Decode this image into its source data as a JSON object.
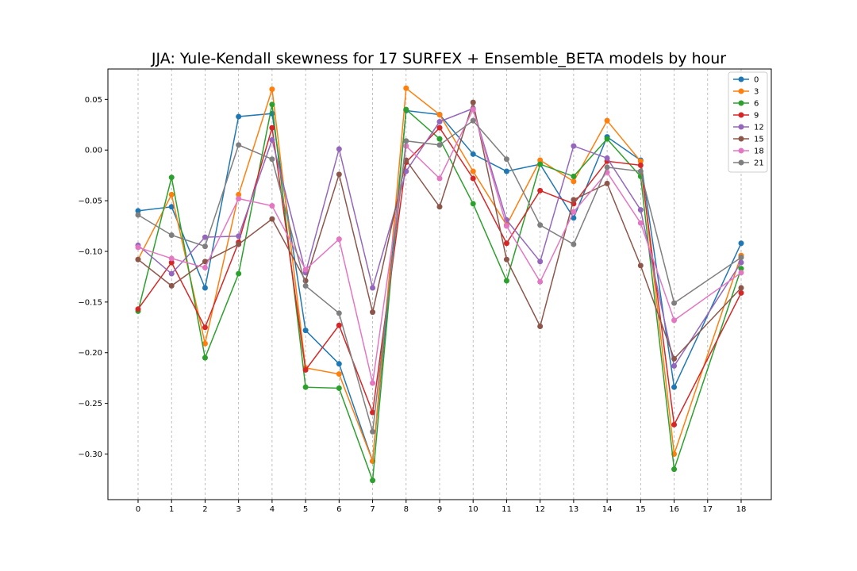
{
  "chart_data": {
    "type": "line",
    "title": "JJA: Yule-Kendall skewness for 17 SURFEX + Ensemble_BETA models by hour",
    "xlabel": "",
    "ylabel": "",
    "x": [
      0,
      1,
      2,
      3,
      4,
      5,
      6,
      7,
      8,
      9,
      10,
      11,
      12,
      13,
      14,
      15,
      16,
      17,
      18
    ],
    "x_tick_labels": [
      "0",
      "1",
      "2",
      "3",
      "4",
      "5",
      "6",
      "7",
      "8",
      "9",
      "10",
      "11",
      "12",
      "13",
      "14",
      "15",
      "16",
      "17",
      "18"
    ],
    "xlim": [
      -0.9,
      18.9
    ],
    "ylim": [
      -0.345,
      0.08
    ],
    "y_ticks": [
      0.05,
      0.0,
      -0.05,
      -0.1,
      -0.15,
      -0.2,
      -0.25,
      -0.3
    ],
    "y_tick_labels": [
      "0.05",
      "0.00",
      "−0.05",
      "−0.10",
      "−0.15",
      "−0.20",
      "−0.25",
      "−0.30"
    ],
    "grid": "vertical dashed",
    "legend_position": "top-right",
    "series": [
      {
        "name": "0",
        "color": "#1f77b4",
        "x": [
          0,
          1,
          2,
          3,
          4,
          5,
          6,
          7,
          8,
          9,
          10,
          11,
          12,
          13,
          14,
          15,
          16,
          18
        ],
        "values": [
          -0.06,
          -0.056,
          -0.136,
          0.033,
          0.036,
          -0.178,
          -0.211,
          -0.307,
          0.039,
          0.035,
          -0.004,
          -0.021,
          -0.014,
          -0.067,
          0.013,
          -0.01,
          -0.234,
          -0.092
        ]
      },
      {
        "name": "3",
        "color": "#ff7f0e",
        "x": [
          0,
          1,
          2,
          3,
          4,
          5,
          6,
          7,
          8,
          9,
          10,
          11,
          12,
          13,
          14,
          15,
          16,
          18
        ],
        "values": [
          -0.108,
          -0.044,
          -0.191,
          -0.044,
          0.06,
          -0.215,
          -0.221,
          -0.307,
          0.061,
          0.035,
          -0.021,
          -0.074,
          -0.01,
          -0.031,
          0.029,
          -0.011,
          -0.3,
          -0.104
        ]
      },
      {
        "name": "6",
        "color": "#2ca02c",
        "x": [
          0,
          1,
          2,
          3,
          4,
          5,
          6,
          7,
          8,
          9,
          10,
          11,
          12,
          13,
          14,
          15,
          16,
          18
        ],
        "values": [
          -0.159,
          -0.027,
          -0.205,
          -0.122,
          0.045,
          -0.234,
          -0.235,
          -0.326,
          0.04,
          0.011,
          -0.053,
          -0.129,
          -0.014,
          -0.026,
          0.011,
          -0.026,
          -0.315,
          -0.117
        ]
      },
      {
        "name": "9",
        "color": "#d62728",
        "x": [
          0,
          1,
          2,
          3,
          4,
          5,
          6,
          7,
          8,
          9,
          10,
          11,
          12,
          13,
          14,
          15,
          16,
          18
        ],
        "values": [
          -0.157,
          -0.111,
          -0.175,
          -0.091,
          0.022,
          -0.217,
          -0.173,
          -0.259,
          -0.012,
          0.022,
          -0.028,
          -0.092,
          -0.04,
          -0.053,
          -0.011,
          -0.015,
          -0.271,
          -0.141
        ]
      },
      {
        "name": "12",
        "color": "#9467bd",
        "x": [
          0,
          1,
          2,
          3,
          4,
          5,
          6,
          7,
          8,
          9,
          10,
          11,
          12,
          13,
          14,
          15,
          16,
          18
        ],
        "values": [
          -0.094,
          -0.122,
          -0.086,
          -0.085,
          0.01,
          -0.121,
          0.001,
          -0.136,
          -0.021,
          0.028,
          0.041,
          -0.069,
          -0.11,
          0.004,
          -0.008,
          -0.059,
          -0.213,
          -0.111
        ]
      },
      {
        "name": "15",
        "color": "#8c564b",
        "x": [
          0,
          1,
          2,
          3,
          4,
          5,
          6,
          7,
          8,
          9,
          10,
          11,
          12,
          13,
          14,
          15,
          16,
          18
        ],
        "values": [
          -0.108,
          -0.134,
          -0.11,
          -0.093,
          -0.068,
          -0.129,
          -0.024,
          -0.16,
          -0.01,
          -0.056,
          0.047,
          -0.108,
          -0.174,
          -0.049,
          -0.033,
          -0.114,
          -0.206,
          -0.136
        ]
      },
      {
        "name": "18",
        "color": "#e377c2",
        "x": [
          0,
          1,
          2,
          3,
          4,
          5,
          6,
          7,
          8,
          9,
          10,
          11,
          12,
          13,
          14,
          15,
          16,
          18
        ],
        "values": [
          -0.096,
          -0.107,
          -0.116,
          -0.048,
          -0.055,
          -0.118,
          -0.088,
          -0.23,
          0.004,
          -0.028,
          0.04,
          -0.075,
          -0.13,
          -0.061,
          -0.022,
          -0.072,
          -0.168,
          -0.121
        ]
      },
      {
        "name": "21",
        "color": "#7f7f7f",
        "x": [
          0,
          1,
          2,
          3,
          4,
          5,
          6,
          7,
          8,
          9,
          10,
          11,
          12,
          13,
          14,
          15,
          16,
          18
        ],
        "values": [
          -0.064,
          -0.084,
          -0.095,
          0.005,
          -0.009,
          -0.134,
          -0.161,
          -0.278,
          0.009,
          0.005,
          0.029,
          -0.009,
          -0.074,
          -0.093,
          -0.017,
          -0.021,
          -0.151,
          -0.106
        ]
      }
    ]
  }
}
